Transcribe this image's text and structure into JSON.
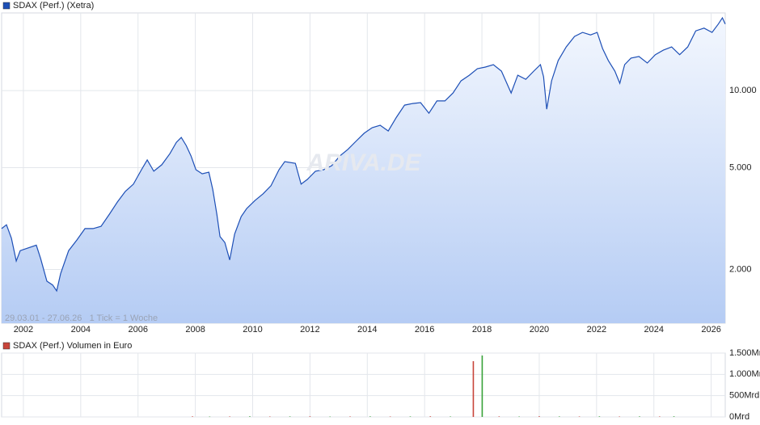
{
  "chart_data": [
    {
      "type": "line",
      "annotation": "29.03.01 - 27.06.26   1 Tick = 1 Woche",
      "watermark": "ARIVA.DE",
      "log_scale": true,
      "grid": true,
      "xlim": [
        2001.24,
        2026.49
      ],
      "xticks": [
        2002,
        2004,
        2006,
        2008,
        2010,
        2012,
        2014,
        2016,
        2018,
        2020,
        2022,
        2024,
        2026
      ],
      "ylim": [
        1234,
        20100
      ],
      "yticks": [
        {
          "value": 2000,
          "label": "2.000"
        },
        {
          "value": 5000,
          "label": "5.000"
        },
        {
          "value": 10000,
          "label": "10.000"
        }
      ],
      "x": [
        2001.24,
        2001.41,
        2001.58,
        2001.75,
        2001.89,
        2002.45,
        2002.6,
        2002.82,
        2003.02,
        2003.16,
        2003.3,
        2003.58,
        2003.87,
        2004.15,
        2004.43,
        2004.71,
        2005.0,
        2005.28,
        2005.56,
        2005.84,
        2006.12,
        2006.32,
        2006.55,
        2006.83,
        2007.11,
        2007.34,
        2007.51,
        2007.68,
        2007.85,
        2008.02,
        2008.24,
        2008.47,
        2008.61,
        2008.75,
        2008.86,
        2009.03,
        2009.2,
        2009.37,
        2009.6,
        2009.79,
        2010.08,
        2010.36,
        2010.64,
        2010.92,
        2011.12,
        2011.49,
        2011.69,
        2011.91,
        2012.19,
        2012.48,
        2012.76,
        2013.04,
        2013.32,
        2013.6,
        2013.89,
        2014.17,
        2014.45,
        2014.73,
        2015.02,
        2015.3,
        2015.58,
        2015.86,
        2016.15,
        2016.43,
        2016.71,
        2016.99,
        2017.27,
        2017.56,
        2017.84,
        2018.12,
        2018.4,
        2018.68,
        2019.02,
        2019.25,
        2019.53,
        2019.81,
        2020.04,
        2020.15,
        2020.26,
        2020.43,
        2020.66,
        2020.94,
        2021.23,
        2021.51,
        2021.79,
        2022.02,
        2022.21,
        2022.41,
        2022.64,
        2022.81,
        2022.98,
        2023.2,
        2023.48,
        2023.77,
        2024.05,
        2024.33,
        2024.62,
        2024.9,
        2025.18,
        2025.46,
        2025.75,
        2026.03,
        2026.25,
        2026.39,
        2026.49
      ],
      "series": [
        {
          "name": "SDAX (Perf.) (Xetra)",
          "color": "#1d4fb6",
          "values": [
            2890,
            2990,
            2650,
            2160,
            2370,
            2490,
            2210,
            1800,
            1740,
            1650,
            1930,
            2370,
            2610,
            2890,
            2890,
            2950,
            3290,
            3670,
            4040,
            4310,
            4910,
            5360,
            4840,
            5130,
            5670,
            6280,
            6560,
            6100,
            5550,
            4910,
            4730,
            4800,
            4100,
            3290,
            2690,
            2550,
            2180,
            2750,
            3220,
            3460,
            3720,
            3950,
            4250,
            4910,
            5280,
            5200,
            4310,
            4500,
            4840,
            4910,
            5090,
            5550,
            5890,
            6330,
            6810,
            7160,
            7320,
            6950,
            7870,
            8770,
            8900,
            8970,
            8160,
            9110,
            9110,
            9780,
            10910,
            11480,
            12170,
            12350,
            12620,
            11910,
            9780,
            11480,
            11060,
            11910,
            12620,
            11320,
            8460,
            10910,
            13100,
            14800,
            16270,
            16870,
            16500,
            16870,
            14590,
            13100,
            11910,
            10670,
            12620,
            13390,
            13590,
            12810,
            13800,
            14380,
            14800,
            13800,
            14800,
            17110,
            17530,
            16870,
            18200,
            19230,
            18200
          ]
        }
      ]
    },
    {
      "type": "bar",
      "grid": true,
      "xlim": [
        2001.24,
        2026.49
      ],
      "xticks": [
        2002,
        2004,
        2006,
        2008,
        2010,
        2012,
        2014,
        2016,
        2018,
        2020,
        2022,
        2024,
        2026
      ],
      "ylim": [
        0,
        1500
      ],
      "yticks": [
        {
          "value": 0,
          "label": "0Mrd"
        },
        {
          "value": 500,
          "label": "500Mrd"
        },
        {
          "value": 1000,
          "label": "1.000Mrd"
        },
        {
          "value": 1500,
          "label": "1.500Mrd"
        }
      ],
      "x": [
        2007.9,
        2008.5,
        2009.2,
        2009.9,
        2010.6,
        2011.3,
        2012.0,
        2012.7,
        2013.4,
        2014.1,
        2014.8,
        2015.5,
        2016.2,
        2016.9,
        2017.7,
        2018.01,
        2018.6,
        2019.3,
        2020.0,
        2020.7,
        2021.4,
        2022.1,
        2022.8,
        2023.5,
        2024.2,
        2024.7
      ],
      "series": [
        {
          "name": "SDAX (Perf.) Volumen in Euro",
          "color": "#c8453b",
          "values": [
            12,
            8,
            10,
            14,
            9,
            11,
            13,
            8,
            10,
            12,
            9,
            11,
            14,
            10,
            1310,
            1443,
            12,
            9,
            15,
            11,
            10,
            13,
            9,
            12,
            10,
            14
          ],
          "colors": [
            "#c8453b",
            "#3aa33a",
            "#c8453b",
            "#3aa33a",
            "#c8453b",
            "#3aa33a",
            "#c8453b",
            "#3aa33a",
            "#c8453b",
            "#3aa33a",
            "#c8453b",
            "#3aa33a",
            "#c8453b",
            "#3aa33a",
            "#c8453b",
            "#3aa33a",
            "#c8453b",
            "#3aa33a",
            "#c8453b",
            "#3aa33a",
            "#c8453b",
            "#3aa33a",
            "#c8453b",
            "#3aa33a",
            "#c8453b",
            "#3aa33a"
          ]
        }
      ]
    }
  ]
}
